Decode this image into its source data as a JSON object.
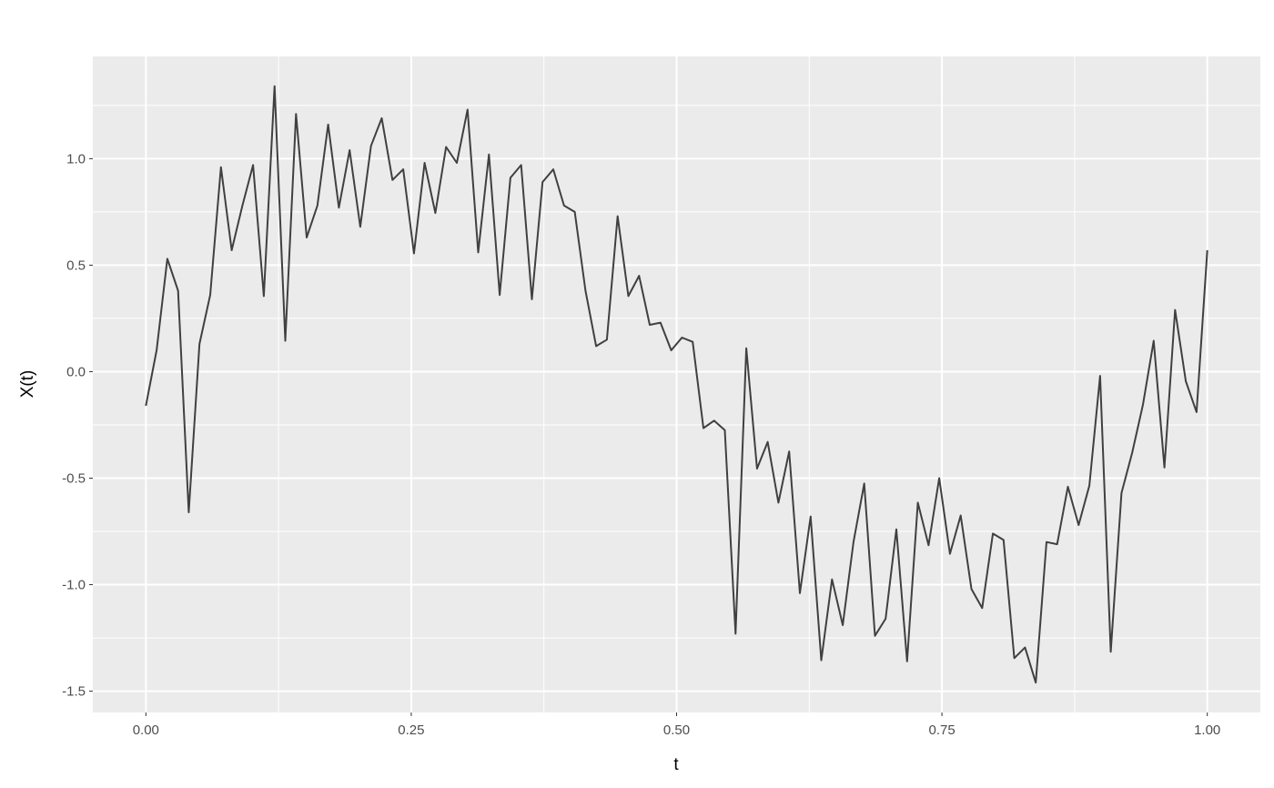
{
  "chart_data": {
    "type": "line",
    "title": "",
    "xlabel": "t",
    "ylabel": "X(t)",
    "xlim": [
      -0.05,
      1.05
    ],
    "ylim": [
      -1.6,
      1.48
    ],
    "x_ticks": [
      "0.00",
      "0.25",
      "0.50",
      "0.75",
      "1.00"
    ],
    "y_ticks": [
      "-1.5",
      "-1.0",
      "-0.5",
      "0.0",
      "0.5",
      "1.0"
    ],
    "grid": true,
    "panel_background": "#ebebeb",
    "line_color": "#404040",
    "x_start": 0,
    "x_end": 1,
    "n_points": 100,
    "values": [
      -0.16,
      0.1,
      0.53,
      0.38,
      -0.66,
      0.13,
      0.36,
      0.96,
      0.57,
      0.78,
      0.97,
      0.355,
      1.34,
      0.145,
      1.21,
      0.63,
      0.78,
      1.16,
      0.77,
      1.04,
      0.68,
      1.06,
      1.19,
      0.9,
      0.95,
      0.555,
      0.98,
      0.745,
      1.055,
      0.98,
      1.23,
      0.56,
      1.02,
      0.36,
      0.91,
      0.97,
      0.34,
      0.89,
      0.95,
      0.78,
      0.75,
      0.38,
      0.12,
      0.15,
      0.73,
      0.355,
      0.45,
      0.22,
      0.23,
      0.1,
      0.16,
      0.14,
      -0.265,
      -0.23,
      -0.275,
      -1.23,
      0.11,
      -0.455,
      -0.33,
      -0.615,
      -0.375,
      -1.04,
      -0.68,
      -1.355,
      -0.975,
      -1.19,
      -0.8,
      -0.525,
      -1.24,
      -1.16,
      -0.74,
      -1.36,
      -0.615,
      -0.815,
      -0.5,
      -0.855,
      -0.675,
      -1.02,
      -1.11,
      -0.76,
      -0.79,
      -1.345,
      -1.295,
      -1.46,
      -0.8,
      -0.81,
      -0.54,
      -0.72,
      -0.535,
      -0.02,
      -1.315,
      -0.57,
      -0.38,
      -0.155,
      0.145,
      -0.45,
      0.29,
      -0.045,
      -0.19,
      0.57
    ]
  }
}
